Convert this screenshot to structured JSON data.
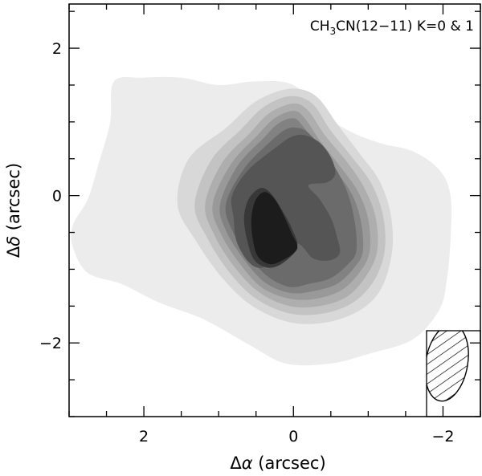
{
  "chart_data": {
    "type": "contour",
    "annotation": {
      "species": "CH",
      "sub1": "3",
      "mid": "CN(12",
      "dash": "−",
      "rest": "11) K=0 & 1"
    },
    "xlabel": {
      "prefix": "Δ",
      "greek": "α",
      "suffix": " (arcsec)"
    },
    "ylabel": {
      "prefix": "Δ",
      "greek": "δ",
      "suffix": " (arcsec)"
    },
    "xlim": [
      3.0,
      -2.5
    ],
    "ylim": [
      -3.0,
      2.6
    ],
    "x_ticks": [
      {
        "value": 2,
        "label": "2"
      },
      {
        "value": 0,
        "label": "0"
      },
      {
        "value": -2,
        "label": "−2"
      }
    ],
    "y_ticks": [
      {
        "value": 2,
        "label": "2"
      },
      {
        "value": 0,
        "label": "0"
      },
      {
        "value": -2,
        "label": "−2"
      }
    ],
    "minor_step": 0.5,
    "contour_levels": [
      {
        "level": 1,
        "color": "#ececec"
      },
      {
        "level": 2,
        "color": "#d8d8d8"
      },
      {
        "level": 3,
        "color": "#c3c3c3"
      },
      {
        "level": 4,
        "color": "#aeaeae"
      },
      {
        "level": 5,
        "color": "#999999"
      },
      {
        "level": 6,
        "color": "#828282"
      },
      {
        "level": 7,
        "color": "#6b6b6b"
      },
      {
        "level": 8,
        "color": "#555555"
      },
      {
        "level": 9,
        "color": "#383838"
      },
      {
        "level": 10,
        "color": "#1c1c1c"
      }
    ],
    "contours": [
      {
        "level": 1,
        "points": [
          [
            2.4,
            1.55
          ],
          [
            2.0,
            1.6
          ],
          [
            1.5,
            1.6
          ],
          [
            1.0,
            1.5
          ],
          [
            0.5,
            1.55
          ],
          [
            0.0,
            1.5
          ],
          [
            -0.4,
            1.1
          ],
          [
            -0.8,
            0.85
          ],
          [
            -1.2,
            0.7
          ],
          [
            -1.6,
            0.6
          ],
          [
            -1.95,
            0.35
          ],
          [
            -2.1,
            0.0
          ],
          [
            -2.1,
            -0.6
          ],
          [
            -2.05,
            -1.15
          ],
          [
            -1.95,
            -1.55
          ],
          [
            -1.6,
            -1.95
          ],
          [
            -1.0,
            -2.15
          ],
          [
            -0.5,
            -2.28
          ],
          [
            0.1,
            -2.28
          ],
          [
            0.6,
            -2.02
          ],
          [
            1.2,
            -1.68
          ],
          [
            1.8,
            -1.45
          ],
          [
            2.3,
            -1.2
          ],
          [
            2.75,
            -1.05
          ],
          [
            2.95,
            -0.7
          ],
          [
            2.95,
            -0.4
          ],
          [
            2.75,
            -0.05
          ],
          [
            2.6,
            0.45
          ],
          [
            2.45,
            1.0
          ]
        ]
      },
      {
        "level": 2,
        "points": [
          [
            0.9,
            0.92
          ],
          [
            0.5,
            1.28
          ],
          [
            0.05,
            1.45
          ],
          [
            -0.3,
            1.35
          ],
          [
            -0.6,
            0.95
          ],
          [
            -0.9,
            0.55
          ],
          [
            -1.15,
            0.2
          ],
          [
            -1.3,
            -0.25
          ],
          [
            -1.32,
            -0.75
          ],
          [
            -1.18,
            -1.25
          ],
          [
            -0.9,
            -1.55
          ],
          [
            -0.45,
            -1.72
          ],
          [
            0.05,
            -1.72
          ],
          [
            0.55,
            -1.5
          ],
          [
            0.95,
            -1.12
          ],
          [
            1.3,
            -0.62
          ],
          [
            1.55,
            -0.12
          ],
          [
            1.4,
            0.5
          ]
        ]
      },
      {
        "level": 3,
        "points": [
          [
            0.7,
            0.9
          ],
          [
            0.4,
            1.2
          ],
          [
            0.05,
            1.35
          ],
          [
            -0.25,
            1.25
          ],
          [
            -0.5,
            0.88
          ],
          [
            -0.8,
            0.5
          ],
          [
            -1.05,
            0.15
          ],
          [
            -1.2,
            -0.28
          ],
          [
            -1.22,
            -0.75
          ],
          [
            -1.08,
            -1.15
          ],
          [
            -0.8,
            -1.45
          ],
          [
            -0.4,
            -1.6
          ],
          [
            0.05,
            -1.6
          ],
          [
            0.5,
            -1.4
          ],
          [
            0.85,
            -1.05
          ],
          [
            1.15,
            -0.58
          ],
          [
            1.32,
            -0.12
          ],
          [
            1.1,
            0.48
          ]
        ]
      },
      {
        "level": 4,
        "points": [
          [
            0.58,
            0.85
          ],
          [
            0.32,
            1.12
          ],
          [
            0.0,
            1.25
          ],
          [
            -0.2,
            1.15
          ],
          [
            -0.42,
            0.82
          ],
          [
            -0.72,
            0.45
          ],
          [
            -0.95,
            0.1
          ],
          [
            -1.1,
            -0.3
          ],
          [
            -1.12,
            -0.75
          ],
          [
            -0.98,
            -1.08
          ],
          [
            -0.72,
            -1.37
          ],
          [
            -0.35,
            -1.5
          ],
          [
            0.05,
            -1.5
          ],
          [
            0.45,
            -1.32
          ],
          [
            0.78,
            -0.98
          ],
          [
            1.05,
            -0.55
          ],
          [
            1.18,
            -0.12
          ],
          [
            0.95,
            0.45
          ]
        ]
      },
      {
        "level": 5,
        "points": [
          [
            0.48,
            0.82
          ],
          [
            0.25,
            1.05
          ],
          [
            0.0,
            1.15
          ],
          [
            -0.15,
            1.05
          ],
          [
            -0.35,
            0.75
          ],
          [
            -0.62,
            0.4
          ],
          [
            -0.86,
            0.06
          ],
          [
            -1.0,
            -0.32
          ],
          [
            -1.02,
            -0.75
          ],
          [
            -0.9,
            -1.02
          ],
          [
            -0.65,
            -1.28
          ],
          [
            -0.3,
            -1.4
          ],
          [
            0.05,
            -1.4
          ],
          [
            0.42,
            -1.25
          ],
          [
            0.72,
            -0.92
          ],
          [
            0.97,
            -0.52
          ],
          [
            1.08,
            -0.12
          ],
          [
            0.84,
            0.42
          ]
        ]
      },
      {
        "level": 6,
        "points": [
          [
            0.4,
            0.78
          ],
          [
            0.2,
            0.98
          ],
          [
            0.0,
            1.05
          ],
          [
            -0.12,
            0.95
          ],
          [
            -0.3,
            0.7
          ],
          [
            -0.55,
            0.36
          ],
          [
            -0.78,
            0.02
          ],
          [
            -0.9,
            -0.34
          ],
          [
            -0.93,
            -0.75
          ],
          [
            -0.82,
            -0.97
          ],
          [
            -0.58,
            -1.2
          ],
          [
            -0.25,
            -1.3
          ],
          [
            0.05,
            -1.32
          ],
          [
            0.38,
            -1.18
          ],
          [
            0.66,
            -0.87
          ],
          [
            0.9,
            -0.48
          ],
          [
            0.98,
            -0.12
          ],
          [
            0.75,
            0.4
          ]
        ]
      },
      {
        "level": 7,
        "points": [
          [
            0.3,
            0.74
          ],
          [
            0.1,
            0.9
          ],
          [
            -0.05,
            0.92
          ],
          [
            -0.2,
            0.85
          ],
          [
            -0.45,
            0.55
          ],
          [
            -0.7,
            0.1
          ],
          [
            -0.82,
            -0.36
          ],
          [
            -0.84,
            -0.75
          ],
          [
            -0.74,
            -0.92
          ],
          [
            -0.5,
            -1.12
          ],
          [
            -0.2,
            -1.2
          ],
          [
            0.05,
            -1.24
          ],
          [
            0.34,
            -1.1
          ],
          [
            0.6,
            -0.82
          ],
          [
            0.83,
            -0.45
          ],
          [
            0.9,
            -0.1
          ],
          [
            0.65,
            0.38
          ]
        ]
      },
      {
        "level": 8,
        "points": [
          [
            0.2,
            0.68
          ],
          [
            0.02,
            0.8
          ],
          [
            -0.15,
            0.82
          ],
          [
            -0.35,
            0.72
          ],
          [
            -0.5,
            0.52
          ],
          [
            -0.56,
            0.3
          ],
          [
            -0.45,
            0.18
          ],
          [
            -0.2,
            0.14
          ],
          [
            -0.35,
            -0.05
          ],
          [
            -0.5,
            -0.3
          ],
          [
            -0.58,
            -0.55
          ],
          [
            -0.62,
            -0.78
          ],
          [
            -0.48,
            -0.88
          ],
          [
            -0.26,
            -0.85
          ],
          [
            -0.05,
            -0.65
          ],
          [
            0.2,
            -0.82
          ],
          [
            0.42,
            -0.98
          ],
          [
            0.6,
            -0.9
          ],
          [
            0.76,
            -0.62
          ],
          [
            0.8,
            -0.3
          ],
          [
            0.82,
            0.0
          ],
          [
            0.6,
            0.35
          ]
        ]
      },
      {
        "level": 9,
        "points": [
          [
            0.45,
            0.1
          ],
          [
            0.32,
            0.05
          ],
          [
            0.18,
            -0.15
          ],
          [
            0.02,
            -0.45
          ],
          [
            -0.05,
            -0.7
          ],
          [
            0.12,
            -0.9
          ],
          [
            0.32,
            -0.98
          ],
          [
            0.52,
            -0.88
          ],
          [
            0.62,
            -0.6
          ],
          [
            0.66,
            -0.3
          ],
          [
            0.6,
            -0.05
          ]
        ]
      },
      {
        "level": 10,
        "points": [
          [
            0.38,
            0.05
          ],
          [
            0.25,
            -0.05
          ],
          [
            0.14,
            -0.25
          ],
          [
            0.03,
            -0.5
          ],
          [
            -0.05,
            -0.72
          ],
          [
            0.15,
            -0.88
          ],
          [
            0.32,
            -0.93
          ],
          [
            0.48,
            -0.82
          ],
          [
            0.55,
            -0.55
          ],
          [
            0.56,
            -0.28
          ],
          [
            0.5,
            -0.05
          ]
        ]
      }
    ],
    "beam": {
      "center_x": -2.05,
      "center_y": -2.27,
      "major_fwhm": 1.05,
      "minor_fwhm": 0.56,
      "pa_deg": 10
    },
    "bg_color": "#ffffff",
    "ink_color": "#000000"
  }
}
